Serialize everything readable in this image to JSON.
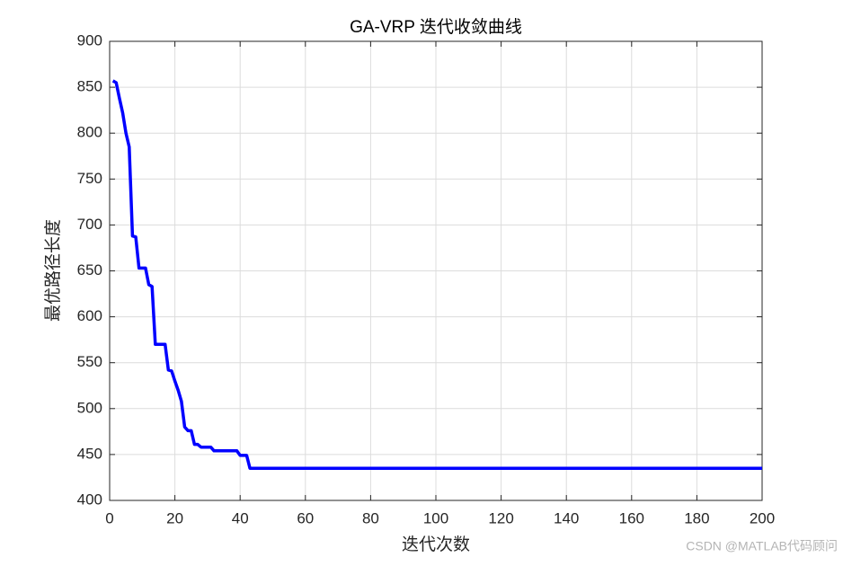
{
  "chart_data": {
    "type": "line",
    "title": "GA-VRP 迭代收敛曲线",
    "xlabel": "迭代次数",
    "ylabel": "最优路径长度",
    "watermark": "CSDN @MATLAB代码顾问",
    "x": [
      1,
      2,
      3,
      4,
      5,
      6,
      7,
      8,
      9,
      10,
      11,
      12,
      13,
      14,
      15,
      16,
      17,
      18,
      19,
      20,
      21,
      22,
      23,
      24,
      25,
      26,
      27,
      28,
      29,
      30,
      31,
      32,
      33,
      34,
      35,
      36,
      37,
      38,
      39,
      40,
      41,
      42,
      43,
      44,
      45,
      46,
      47,
      48,
      49,
      50,
      51,
      52,
      53,
      54,
      55,
      56,
      57,
      58,
      59,
      60,
      61,
      62,
      63,
      64,
      65,
      66,
      67,
      68,
      69,
      70,
      71,
      72,
      73,
      74,
      75,
      76,
      77,
      78,
      79,
      80,
      81,
      82,
      83,
      84,
      85,
      86,
      87,
      88,
      89,
      90,
      91,
      92,
      93,
      94,
      95,
      96,
      97,
      98,
      99,
      100,
      101,
      102,
      103,
      104,
      105,
      106,
      107,
      108,
      109,
      110,
      111,
      112,
      113,
      114,
      115,
      116,
      117,
      118,
      119,
      120,
      121,
      122,
      123,
      124,
      125,
      126,
      127,
      128,
      129,
      130,
      131,
      132,
      133,
      134,
      135,
      136,
      137,
      138,
      139,
      140,
      141,
      142,
      143,
      144,
      145,
      146,
      147,
      148,
      149,
      150,
      151,
      152,
      153,
      154,
      155,
      156,
      157,
      158,
      159,
      160,
      161,
      162,
      163,
      164,
      165,
      166,
      167,
      168,
      169,
      170,
      171,
      172,
      173,
      174,
      175,
      176,
      177,
      178,
      179,
      180,
      181,
      182,
      183,
      184,
      185,
      186,
      187,
      188,
      189,
      190,
      191,
      192,
      193,
      194,
      195,
      196,
      197,
      198,
      199,
      200
    ],
    "series": [
      {
        "color": "#0000ff",
        "values": [
          857,
          855,
          838,
          822,
          800,
          785,
          688,
          687,
          653,
          653,
          653,
          635,
          633,
          570,
          570,
          570,
          570,
          542,
          541,
          530,
          520,
          508,
          480,
          476,
          476,
          461,
          461,
          458,
          458,
          458,
          458,
          454,
          454,
          454,
          454,
          454,
          454,
          454,
          454,
          449,
          449,
          449,
          435,
          435,
          435,
          435,
          435,
          435,
          435,
          435,
          435,
          435,
          435,
          435,
          435,
          435,
          435,
          435,
          435,
          435,
          435,
          435,
          435,
          435,
          435,
          435,
          435,
          435,
          435,
          435,
          435,
          435,
          435,
          435,
          435,
          435,
          435,
          435,
          435,
          435,
          435,
          435,
          435,
          435,
          435,
          435,
          435,
          435,
          435,
          435,
          435,
          435,
          435,
          435,
          435,
          435,
          435,
          435,
          435,
          435,
          435,
          435,
          435,
          435,
          435,
          435,
          435,
          435,
          435,
          435,
          435,
          435,
          435,
          435,
          435,
          435,
          435,
          435,
          435,
          435,
          435,
          435,
          435,
          435,
          435,
          435,
          435,
          435,
          435,
          435,
          435,
          435,
          435,
          435,
          435,
          435,
          435,
          435,
          435,
          435,
          435,
          435,
          435,
          435,
          435,
          435,
          435,
          435,
          435,
          435,
          435,
          435,
          435,
          435,
          435,
          435,
          435,
          435,
          435,
          435,
          435,
          435,
          435,
          435,
          435,
          435,
          435,
          435,
          435,
          435,
          435,
          435,
          435,
          435,
          435,
          435,
          435,
          435,
          435,
          435,
          435,
          435,
          435,
          435,
          435,
          435,
          435,
          435,
          435,
          435,
          435,
          435,
          435,
          435,
          435,
          435,
          435,
          435,
          435,
          435
        ]
      }
    ],
    "xlim": [
      0,
      200
    ],
    "xticks": [
      0,
      20,
      40,
      60,
      80,
      100,
      120,
      140,
      160,
      180,
      200
    ],
    "ylim": [
      400,
      900
    ],
    "yticks": [
      400,
      450,
      500,
      550,
      600,
      650,
      700,
      750,
      800,
      850,
      900
    ],
    "grid": true
  }
}
